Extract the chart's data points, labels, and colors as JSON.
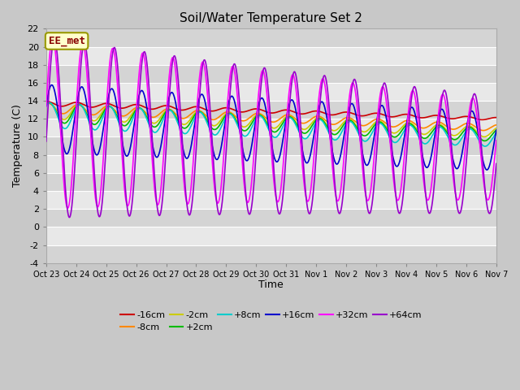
{
  "title": "Soil/Water Temperature Set 2",
  "xlabel": "Time",
  "ylabel": "Temperature (C)",
  "ylim": [
    -4,
    22
  ],
  "yticks": [
    -4,
    -2,
    0,
    2,
    4,
    6,
    8,
    10,
    12,
    14,
    16,
    18,
    20,
    22
  ],
  "annotation_text": "EE_met",
  "annotation_bg": "#ffffcc",
  "annotation_border": "#999900",
  "series": [
    {
      "label": "-16cm",
      "color": "#cc0000"
    },
    {
      "label": "-8cm",
      "color": "#ff8800"
    },
    {
      "label": "-2cm",
      "color": "#cccc00"
    },
    {
      "label": "+2cm",
      "color": "#00bb00"
    },
    {
      "label": "+8cm",
      "color": "#00cccc"
    },
    {
      "label": "+16cm",
      "color": "#0000cc"
    },
    {
      "label": "+32cm",
      "color": "#ff00ff"
    },
    {
      "label": "+64cm",
      "color": "#9900cc"
    }
  ],
  "x_tick_labels": [
    "Oct 23",
    "Oct 24",
    "Oct 25",
    "Oct 26",
    "Oct 27",
    "Oct 28",
    "Oct 29",
    "Oct 30",
    "Oct 31",
    "Nov 1",
    "Nov 2",
    "Nov 3",
    "Nov 4",
    "Nov 5",
    "Nov 6",
    "Nov 7"
  ],
  "bg_color": "#ffffff",
  "plot_bg_color": "#e8e8e8",
  "stripe_color": "#d4d4d4"
}
